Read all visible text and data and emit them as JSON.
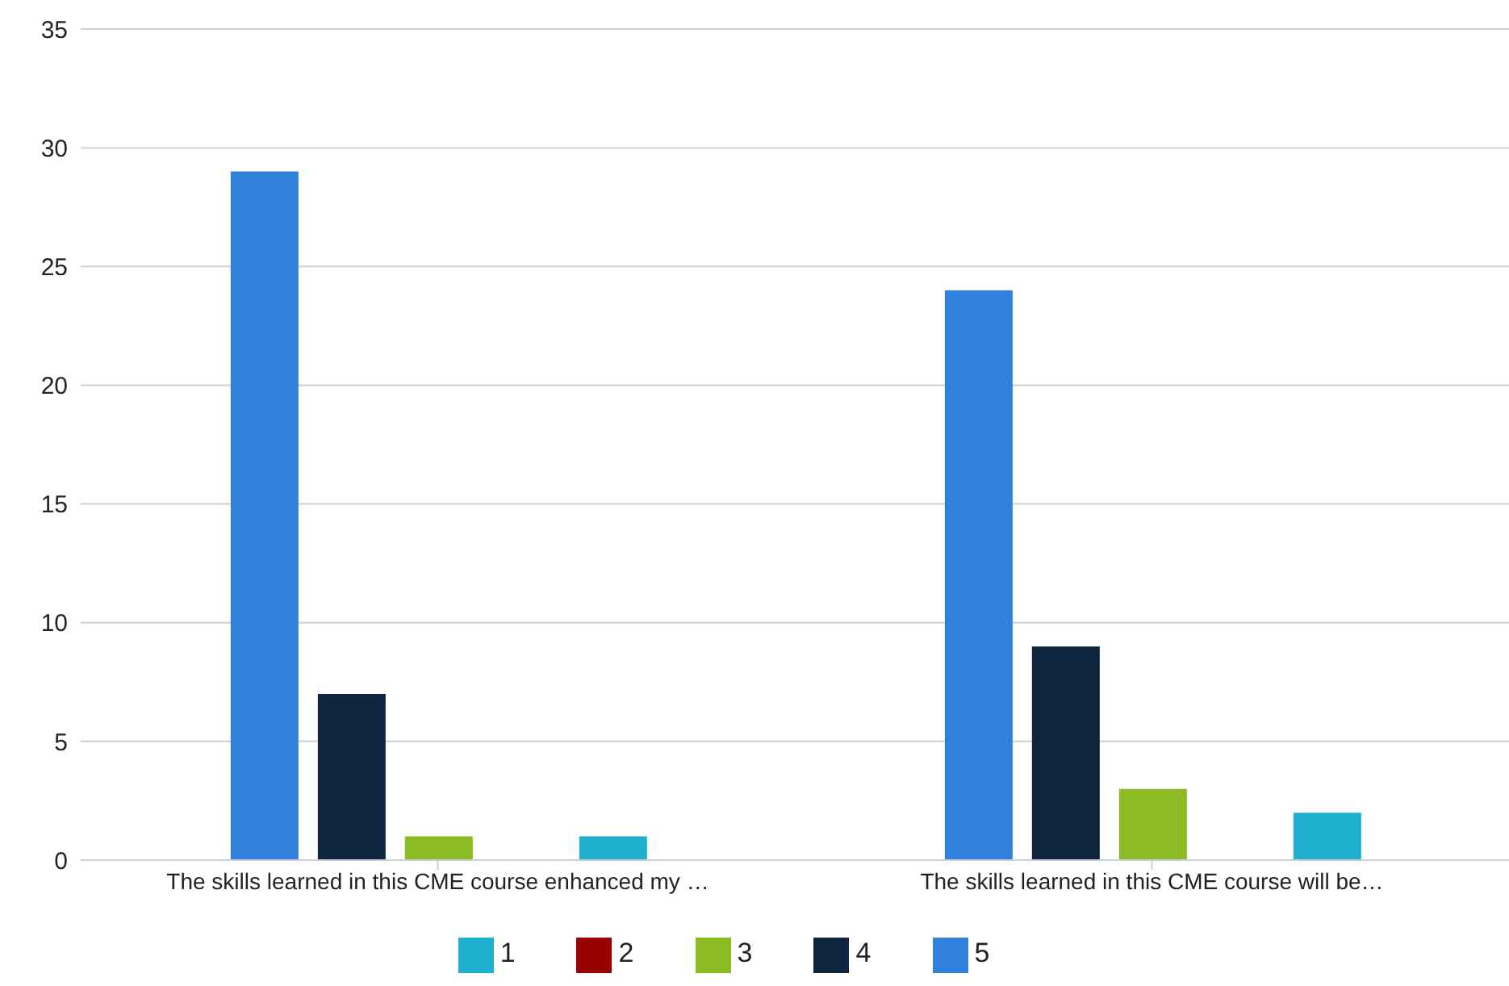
{
  "chart_data": {
    "type": "bar",
    "categories": [
      "The skills learned in this CME course enhanced my …",
      "The skills learned in this CME course will be…"
    ],
    "series": [
      {
        "name": "5",
        "color": "#3080dc",
        "values": [
          29,
          24
        ]
      },
      {
        "name": "4",
        "color": "#10253f",
        "values": [
          7,
          9
        ]
      },
      {
        "name": "3",
        "color": "#8cbb26",
        "values": [
          1,
          3
        ]
      },
      {
        "name": "2",
        "color": "#990000",
        "values": [
          0,
          0
        ]
      },
      {
        "name": "1",
        "color": "#1fb0d0",
        "values": [
          1,
          2
        ]
      }
    ],
    "ylim": [
      0,
      35
    ],
    "yticks": [
      0,
      5,
      10,
      15,
      20,
      25,
      30,
      35
    ],
    "grid": "y",
    "legend": "bottom"
  }
}
